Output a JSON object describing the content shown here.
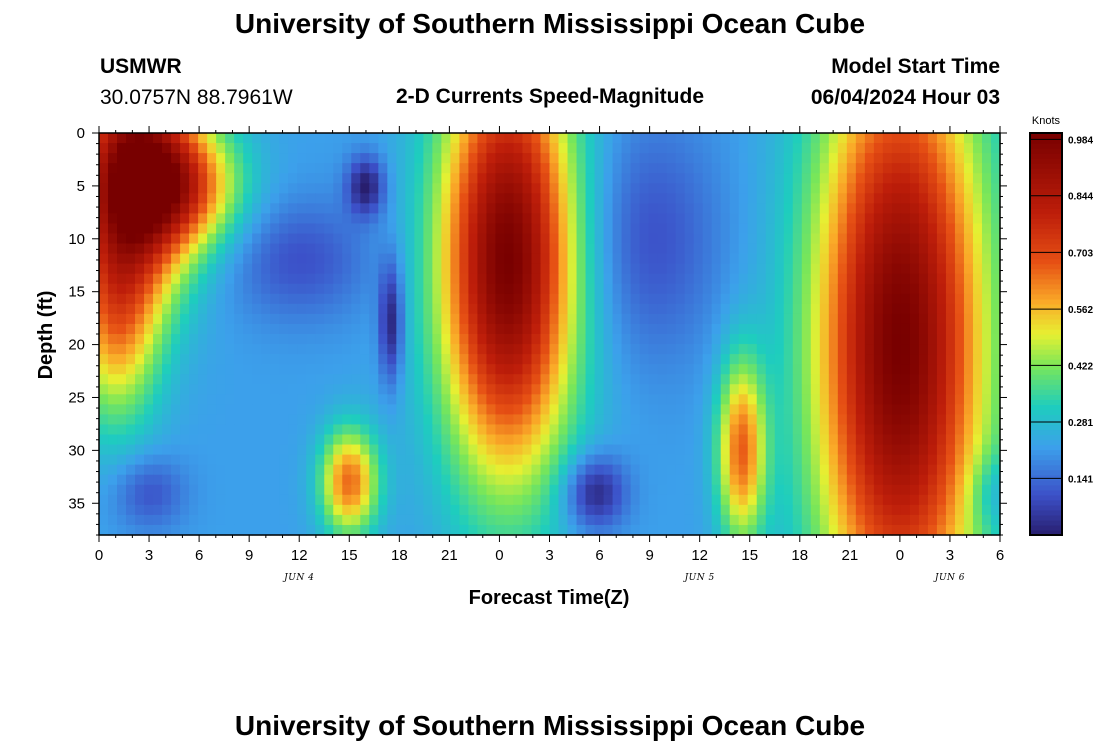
{
  "header": {
    "title": "University of Southern Mississippi Ocean Cube",
    "station": "USMWR",
    "coordinates": "30.0757N  88.7961W",
    "subtitle": "2-D Currents Speed-Magnitude",
    "model_start_label": "Model Start Time",
    "model_start_value": "06/04/2024 Hour 03"
  },
  "footer": {
    "title": "University of Southern Mississippi Ocean Cube"
  },
  "chart_data": {
    "type": "heatmap",
    "title": "2-D Currents Speed-Magnitude",
    "xlabel": "Forecast Time(Z)",
    "ylabel": "Depth (ft)",
    "x_range_hours": [
      0,
      54
    ],
    "y_range_ft": [
      0,
      38
    ],
    "y_inverted": true,
    "x_tick_labels": [
      "0",
      "3",
      "6",
      "9",
      "12",
      "15",
      "18",
      "21",
      "0",
      "3",
      "6",
      "9",
      "12",
      "15",
      "18",
      "21",
      "0",
      "3",
      "6"
    ],
    "y_tick_labels": [
      "0",
      "5",
      "10",
      "15",
      "20",
      "25",
      "30",
      "35"
    ],
    "y_tick_values": [
      0,
      5,
      10,
      15,
      20,
      25,
      30,
      35
    ],
    "date_labels": [
      {
        "text": "JUN 4",
        "hour": 12
      },
      {
        "text": "JUN 5",
        "hour": 36
      },
      {
        "text": "JUN 6",
        "hour": 51
      }
    ],
    "colorbar": {
      "label": "Knots",
      "ticks": [
        0.141,
        0.281,
        0.422,
        0.562,
        0.703,
        0.844,
        0.984
      ],
      "tick_labels": [
        "0.141",
        "0.281",
        "0.422",
        "0.562",
        "0.703",
        "0.844",
        "0.984"
      ],
      "range": [
        0,
        1.0
      ]
    },
    "features": [
      {
        "hour": 2.0,
        "depth": 4,
        "speed": 0.95,
        "sx": 2.5,
        "sy": 8
      },
      {
        "hour": 1.0,
        "depth": 18,
        "speed": 0.55,
        "sx": 1.8,
        "sy": 7
      },
      {
        "hour": 5.0,
        "depth": 5,
        "speed": 0.6,
        "sx": 2.5,
        "sy": 4
      },
      {
        "hour": 12.0,
        "depth": 12,
        "speed": 0.1,
        "sx": 3.0,
        "sy": 4
      },
      {
        "hour": 3.0,
        "depth": 34,
        "speed": 0.1,
        "sx": 1.5,
        "sy": 2.5
      },
      {
        "hour": 15.0,
        "depth": 33,
        "speed": 0.65,
        "sx": 1.2,
        "sy": 3.5
      },
      {
        "hour": 16.0,
        "depth": 5,
        "speed": 0.0,
        "sx": 0.8,
        "sy": 2
      },
      {
        "hour": 17.5,
        "depth": 18,
        "speed": 0.0,
        "sx": 0.5,
        "sy": 4
      },
      {
        "hour": 24.5,
        "depth": 12,
        "speed": 1.0,
        "sx": 2.8,
        "sy": 14
      },
      {
        "hour": 29.7,
        "depth": 34,
        "speed": 0.0,
        "sx": 1.3,
        "sy": 2.5
      },
      {
        "hour": 33.0,
        "depth": 10,
        "speed": 0.1,
        "sx": 3.0,
        "sy": 8
      },
      {
        "hour": 38.5,
        "depth": 30,
        "speed": 0.65,
        "sx": 1.0,
        "sy": 6
      },
      {
        "hour": 48.0,
        "depth": 20,
        "speed": 1.0,
        "sx": 3.5,
        "sy": 20
      },
      {
        "hour": 53.5,
        "depth": 34,
        "speed": 0.12,
        "sx": 1.0,
        "sy": 2.5
      }
    ]
  }
}
